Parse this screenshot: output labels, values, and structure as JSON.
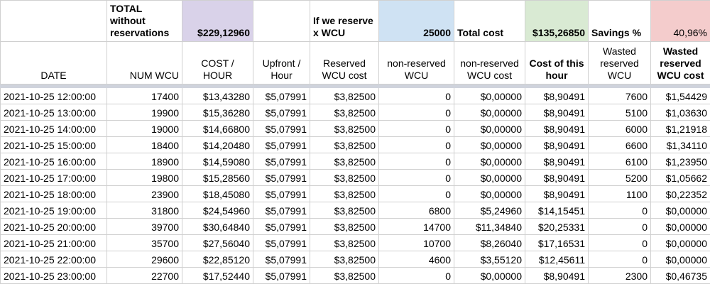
{
  "summary": {
    "total_label": "TOTAL without reservations",
    "total_value": "$229,12960",
    "reserve_label": "If we reserve x WCU",
    "reserve_value": "25000",
    "total_cost_label": "Total cost",
    "total_cost_value": "$135,26850",
    "savings_label": "Savings %",
    "savings_value": "40,96%"
  },
  "colors": {
    "purple": "#d9d2e9",
    "blue": "#cfe2f3",
    "green": "#d9ead3",
    "red": "#f4cccc"
  },
  "columns": [
    "DATE",
    "NUM WCU",
    "COST / HOUR",
    "Upfront / Hour",
    "Reserved WCU cost",
    "non-reserved WCU",
    "non-reserved WCU cost",
    "Cost of this hour",
    "Wasted reserved WCU",
    "Wasted reserved WCU cost"
  ],
  "rows": [
    [
      "2021-10-25 12:00:00",
      "17400",
      "$13,43280",
      "$5,07991",
      "$3,82500",
      "0",
      "$0,00000",
      "$8,90491",
      "7600",
      "$1,54429"
    ],
    [
      "2021-10-25 13:00:00",
      "19900",
      "$15,36280",
      "$5,07991",
      "$3,82500",
      "0",
      "$0,00000",
      "$8,90491",
      "5100",
      "$1,03630"
    ],
    [
      "2021-10-25 14:00:00",
      "19000",
      "$14,66800",
      "$5,07991",
      "$3,82500",
      "0",
      "$0,00000",
      "$8,90491",
      "6000",
      "$1,21918"
    ],
    [
      "2021-10-25 15:00:00",
      "18400",
      "$14,20480",
      "$5,07991",
      "$3,82500",
      "0",
      "$0,00000",
      "$8,90491",
      "6600",
      "$1,34110"
    ],
    [
      "2021-10-25 16:00:00",
      "18900",
      "$14,59080",
      "$5,07991",
      "$3,82500",
      "0",
      "$0,00000",
      "$8,90491",
      "6100",
      "$1,23950"
    ],
    [
      "2021-10-25 17:00:00",
      "19800",
      "$15,28560",
      "$5,07991",
      "$3,82500",
      "0",
      "$0,00000",
      "$8,90491",
      "5200",
      "$1,05662"
    ],
    [
      "2021-10-25 18:00:00",
      "23900",
      "$18,45080",
      "$5,07991",
      "$3,82500",
      "0",
      "$0,00000",
      "$8,90491",
      "1100",
      "$0,22352"
    ],
    [
      "2021-10-25 19:00:00",
      "31800",
      "$24,54960",
      "$5,07991",
      "$3,82500",
      "6800",
      "$5,24960",
      "$14,15451",
      "0",
      "$0,00000"
    ],
    [
      "2021-10-25 20:00:00",
      "39700",
      "$30,64840",
      "$5,07991",
      "$3,82500",
      "14700",
      "$11,34840",
      "$20,25331",
      "0",
      "$0,00000"
    ],
    [
      "2021-10-25 21:00:00",
      "35700",
      "$27,56040",
      "$5,07991",
      "$3,82500",
      "10700",
      "$8,26040",
      "$17,16531",
      "0",
      "$0,00000"
    ],
    [
      "2021-10-25 22:00:00",
      "29600",
      "$22,85120",
      "$5,07991",
      "$3,82500",
      "4600",
      "$3,55120",
      "$12,45611",
      "0",
      "$0,00000"
    ],
    [
      "2021-10-25 23:00:00",
      "22700",
      "$17,52440",
      "$5,07991",
      "$3,82500",
      "0",
      "$0,00000",
      "$8,90491",
      "2300",
      "$0,46735"
    ]
  ]
}
